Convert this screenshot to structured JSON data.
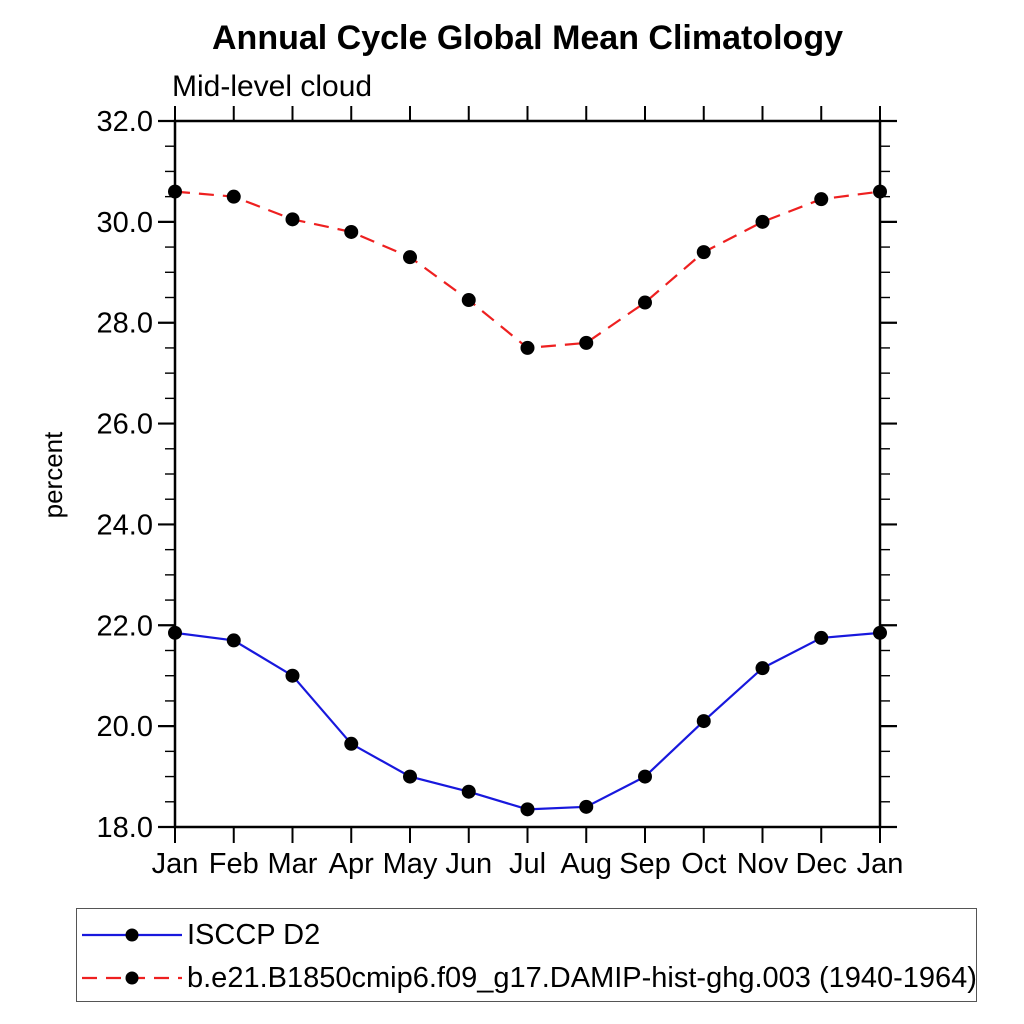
{
  "chart_data": {
    "type": "line",
    "title": "Annual Cycle Global Mean Climatology",
    "subtitle": "Mid-level cloud",
    "xlabel": "",
    "ylabel": "percent",
    "categories": [
      "Jan",
      "Feb",
      "Mar",
      "Apr",
      "May",
      "Jun",
      "Jul",
      "Aug",
      "Sep",
      "Oct",
      "Nov",
      "Dec",
      "Jan"
    ],
    "series": [
      {
        "name": "ISCCP D2",
        "color": "#1818dd",
        "line_style": "solid",
        "marker": "filled-circle",
        "marker_color": "#000000",
        "values": [
          21.85,
          21.7,
          21.0,
          19.65,
          19.0,
          18.7,
          18.35,
          18.4,
          19.0,
          20.1,
          21.15,
          21.75,
          21.85
        ]
      },
      {
        "name": "b.e21.B1850cmip6.f09_g17.DAMIP-hist-ghg.003 (1940-1964)",
        "color": "#ee2020",
        "line_style": "dashed",
        "marker": "filled-circle",
        "marker_color": "#000000",
        "values": [
          30.6,
          30.5,
          30.05,
          29.8,
          29.3,
          28.45,
          27.5,
          27.6,
          28.4,
          29.4,
          30.0,
          30.45,
          30.6
        ]
      }
    ],
    "ylim": [
      18.0,
      32.0
    ],
    "yticks_major": [
      18.0,
      20.0,
      22.0,
      24.0,
      26.0,
      28.0,
      30.0,
      32.0
    ],
    "ytick_labels": [
      "18.0",
      "20.0",
      "22.0",
      "24.0",
      "26.0",
      "28.0",
      "30.0",
      "32.0"
    ],
    "ytick_minor_step": 0.5,
    "grid": false,
    "legend_position": "bottom-left-box",
    "axis_color": "#000000"
  }
}
